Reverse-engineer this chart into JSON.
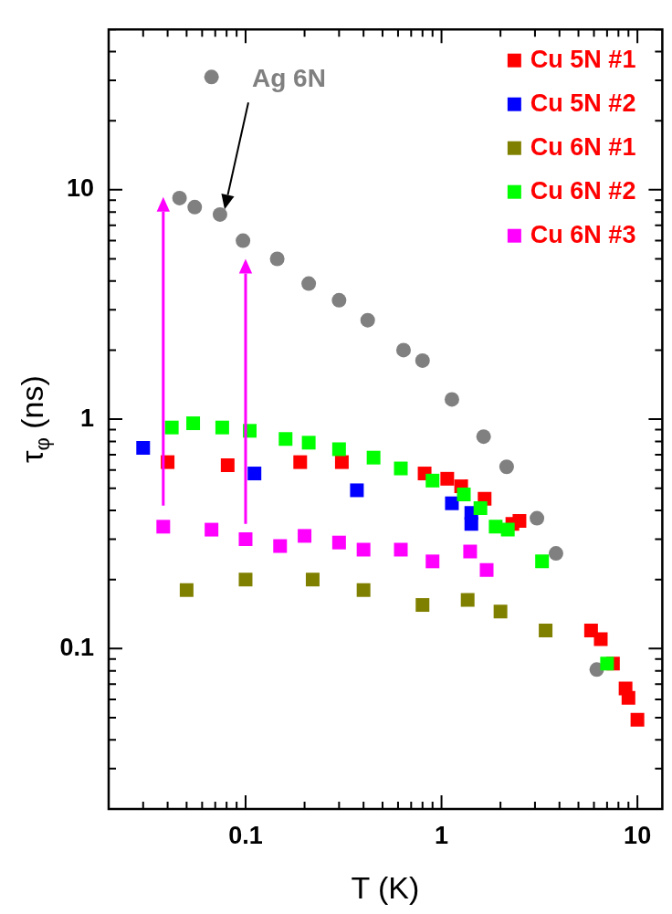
{
  "chart_data": {
    "type": "scatter",
    "xlabel": "T (K)",
    "ylabel": "τ$_{φ}$ (ns)",
    "log": "xy",
    "legend": "top right",
    "xlim": [
      0.02,
      13.4
    ],
    "ylim": [
      0.02,
      50
    ],
    "xticks": [
      {
        "value": 0.02,
        "label": null
      },
      {
        "value": 0.03,
        "label": null
      },
      {
        "value": 0.04,
        "label": null
      },
      {
        "value": 0.05,
        "label": null
      },
      {
        "value": 0.06,
        "label": null
      },
      {
        "value": 0.07,
        "label": null
      },
      {
        "value": 0.08,
        "label": null
      },
      {
        "value": 0.09,
        "label": null
      },
      0.1,
      {
        "value": 0.2,
        "label": null
      },
      {
        "value": 0.3,
        "label": null
      },
      {
        "value": 0.4,
        "label": null
      },
      {
        "value": 0.5,
        "label": null
      },
      {
        "value": 0.6,
        "label": null
      },
      {
        "value": 0.7,
        "label": null
      },
      {
        "value": 0.8,
        "label": null
      },
      {
        "value": 0.9,
        "label": null
      },
      1,
      {
        "value": 2,
        "label": null
      },
      {
        "value": 3,
        "label": null
      },
      {
        "value": 4,
        "label": null
      },
      {
        "value": 5,
        "label": null
      },
      {
        "value": 6,
        "label": null
      },
      {
        "value": 7,
        "label": null
      },
      {
        "value": 8,
        "label": null
      },
      {
        "value": 9,
        "label": null
      },
      10
    ],
    "yticks": [
      {
        "value": 0.02,
        "label": null
      },
      {
        "value": 0.03,
        "label": null
      },
      {
        "value": 0.04,
        "label": null
      },
      {
        "value": 0.05,
        "label": null
      },
      {
        "value": 0.06,
        "label": null
      },
      {
        "value": 0.07,
        "label": null
      },
      {
        "value": 0.08,
        "label": null
      },
      {
        "value": 0.09,
        "label": null
      },
      0.1,
      {
        "value": 0.2,
        "label": null
      },
      {
        "value": 0.3,
        "label": null
      },
      {
        "value": 0.4,
        "label": null
      },
      {
        "value": 0.5,
        "label": null
      },
      {
        "value": 0.6,
        "label": null
      },
      {
        "value": 0.7,
        "label": null
      },
      {
        "value": 0.8,
        "label": null
      },
      {
        "value": 0.9,
        "label": null
      },
      1,
      {
        "value": 2,
        "label": null
      },
      {
        "value": 3,
        "label": null
      },
      {
        "value": 4,
        "label": null
      },
      {
        "value": 5,
        "label": null
      },
      {
        "value": 6,
        "label": null
      },
      {
        "value": 7,
        "label": null
      },
      {
        "value": 8,
        "label": null
      },
      {
        "value": 9,
        "label": null
      },
      10,
      {
        "value": 20,
        "label": null
      },
      {
        "value": 30,
        "label": null
      },
      {
        "value": 40,
        "label": null
      },
      {
        "value": 50,
        "label": null
      }
    ],
    "annotations": [
      "Ag 6N"
    ],
    "series": [
      {
        "color": "#808080",
        "marker": "circle",
        "x": [
          0.067,
          0.046,
          0.055,
          0.074,
          0.097,
          0.145,
          0.21,
          0.3,
          0.42,
          0.64,
          0.8,
          1.13,
          1.64,
          2.15,
          3.07,
          3.84,
          6.2
        ],
        "values": [
          31,
          9.2,
          8.4,
          7.8,
          6.0,
          5.0,
          3.9,
          3.3,
          2.7,
          2.0,
          1.8,
          1.22,
          0.84,
          0.62,
          0.37,
          0.26,
          0.081
        ]
      },
      {
        "name": "Cu 5N #1",
        "color": "#ff0000",
        "marker": "square",
        "x": [
          0.04,
          0.081,
          0.19,
          0.31,
          0.82,
          1.07,
          1.26,
          1.66,
          2.3,
          2.5,
          5.8,
          6.5,
          7.5,
          8.7,
          9.0,
          10
        ],
        "values": [
          0.65,
          0.63,
          0.65,
          0.65,
          0.58,
          0.55,
          0.51,
          0.45,
          0.35,
          0.36,
          0.12,
          0.11,
          0.086,
          0.067,
          0.061,
          0.049
        ]
      },
      {
        "name": "Cu 5N #2",
        "color": "#0000ff",
        "marker": "square",
        "x": [
          0.03,
          0.111,
          0.37,
          1.13,
          1.42,
          1.42
        ],
        "values": [
          0.75,
          0.58,
          0.49,
          0.43,
          0.39,
          0.35
        ]
      },
      {
        "name": "Cu 6N #1",
        "color": "#808000",
        "marker": "square",
        "x": [
          0.05,
          0.1,
          0.22,
          0.4,
          0.8,
          1.36,
          2.0,
          3.4
        ],
        "values": [
          0.18,
          0.2,
          0.2,
          0.18,
          0.155,
          0.163,
          0.145,
          0.12
        ]
      },
      {
        "name": "Cu 6N #2",
        "color": "#00ff00",
        "marker": "square",
        "x": [
          0.042,
          0.054,
          0.076,
          0.105,
          0.16,
          0.21,
          0.3,
          0.45,
          0.62,
          0.9,
          1.3,
          1.58,
          1.89,
          2.18,
          3.26,
          7.0
        ],
        "values": [
          0.92,
          0.96,
          0.92,
          0.89,
          0.82,
          0.79,
          0.74,
          0.68,
          0.61,
          0.54,
          0.47,
          0.41,
          0.34,
          0.33,
          0.24,
          0.086
        ]
      },
      {
        "name": "Cu 6N #3",
        "color": "#ff00ff",
        "marker": "square",
        "x": [
          0.038,
          0.067,
          0.1,
          0.15,
          0.2,
          0.3,
          0.4,
          0.62,
          0.9,
          1.4,
          1.7
        ],
        "values": [
          0.34,
          0.33,
          0.3,
          0.28,
          0.31,
          0.29,
          0.27,
          0.27,
          0.24,
          0.265,
          0.22
        ]
      }
    ]
  }
}
